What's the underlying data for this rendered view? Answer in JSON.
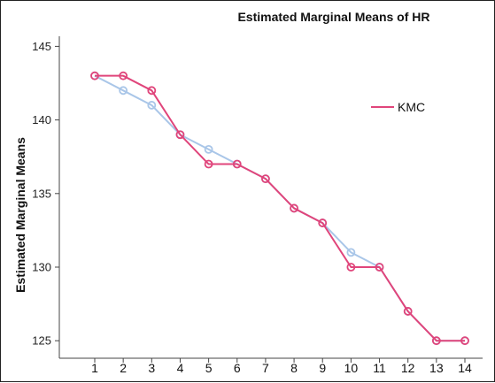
{
  "chart_data": {
    "type": "line",
    "title": "Estimated Marginal Means of HR",
    "ylabel": "Estimated Marginal Means",
    "xlabel": "",
    "x": [
      1,
      2,
      3,
      4,
      5,
      6,
      7,
      8,
      9,
      10,
      11,
      12,
      13,
      14
    ],
    "ylim": [
      124,
      146
    ],
    "yticks": [
      125,
      130,
      135,
      140,
      145
    ],
    "grid": false,
    "legend": "top-right",
    "series": [
      {
        "name": "",
        "color": "#a9c6e8",
        "values": [
          143,
          142,
          141,
          139,
          138,
          137,
          136,
          134,
          133,
          131,
          130,
          127,
          125,
          125
        ]
      },
      {
        "name": "KMC",
        "color": "#e0457b",
        "values": [
          143,
          143,
          142,
          139,
          137,
          137,
          136,
          134,
          133,
          130,
          130,
          127,
          125,
          125
        ]
      }
    ]
  }
}
